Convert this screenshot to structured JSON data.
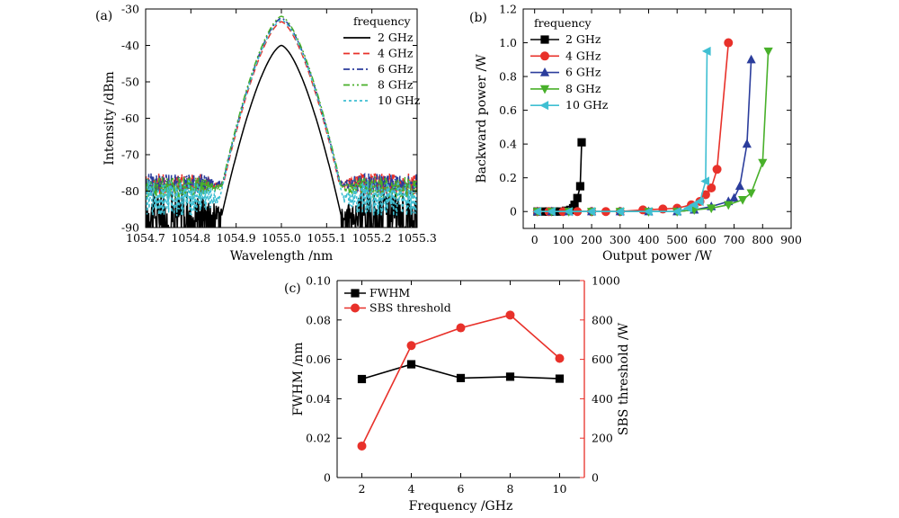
{
  "chart_data": [
    {
      "panel": "(a)",
      "type": "line",
      "xlabel": "Wavelength /nm",
      "ylabel": "Intensity /dBm",
      "xlim": [
        1054.7,
        1055.3
      ],
      "ylim": [
        -90,
        -30
      ],
      "xticks": [
        "1054.7",
        "1054.8",
        "1054.9",
        "1055.0",
        "1055.1",
        "1055.2",
        "1055.3"
      ],
      "yticks": [
        "-90",
        "-80",
        "-70",
        "-60",
        "-50",
        "-40",
        "-30"
      ],
      "legend_title": "frequency",
      "legend_position": "top-right",
      "series": [
        {
          "name": "2 GHz",
          "color": "#000000",
          "dash": "solid",
          "peak": -40,
          "floor": -86,
          "noise": 6
        },
        {
          "name": "4 GHz",
          "color": "#e8312a",
          "dash": "dash",
          "peak": -33.5,
          "floor": -78,
          "noise": 3
        },
        {
          "name": "6 GHz",
          "color": "#2b3d9c",
          "dash": "dashdot",
          "peak": -32.5,
          "floor": -78,
          "noise": 3
        },
        {
          "name": "8 GHz",
          "color": "#48b02a",
          "dash": "dashdotdot",
          "peak": -32,
          "floor": -79,
          "noise": 3
        },
        {
          "name": "10 GHz",
          "color": "#3fbfd2",
          "dash": "shortdash",
          "peak": -33,
          "floor": -82,
          "noise": 5
        }
      ]
    },
    {
      "panel": "(b)",
      "type": "line",
      "xlabel": "Output power /W",
      "ylabel": "Backward power /W",
      "xlim": [
        -40,
        900
      ],
      "ylim": [
        -0.1,
        1.2
      ],
      "xticks": [
        "0",
        "100",
        "200",
        "300",
        "400",
        "500",
        "600",
        "700",
        "800",
        "900"
      ],
      "yticks": [
        "0",
        "0.2",
        "0.4",
        "0.6",
        "0.8",
        "1.0",
        "1.2"
      ],
      "legend_title": "frequency",
      "legend_position": "top-left",
      "series": [
        {
          "name": "2 GHz",
          "color": "#000000",
          "marker": "square",
          "x": [
            10,
            30,
            50,
            70,
            90,
            110,
            125,
            135,
            140,
            150,
            160,
            165
          ],
          "y": [
            0,
            0,
            0,
            0,
            0,
            0.005,
            0.01,
            0.02,
            0.04,
            0.08,
            0.15,
            0.41
          ]
        },
        {
          "name": "4 GHz",
          "color": "#e8312a",
          "marker": "circle",
          "x": [
            10,
            50,
            100,
            150,
            200,
            250,
            300,
            380,
            450,
            500,
            550,
            580,
            600,
            620,
            640,
            680
          ],
          "y": [
            0,
            0,
            0,
            0,
            0,
            0,
            0,
            0.01,
            0.015,
            0.02,
            0.04,
            0.06,
            0.1,
            0.14,
            0.25,
            1.0
          ]
        },
        {
          "name": "6 GHz",
          "color": "#2b3d9c",
          "marker": "triangle-up",
          "x": [
            10,
            60,
            120,
            200,
            300,
            400,
            500,
            560,
            620,
            680,
            700,
            720,
            745,
            760
          ],
          "y": [
            0,
            0,
            0,
            0,
            0,
            0,
            0,
            0.01,
            0.03,
            0.06,
            0.08,
            0.15,
            0.4,
            0.9
          ]
        },
        {
          "name": "8 GHz",
          "color": "#48b02a",
          "marker": "triangle-down",
          "x": [
            10,
            60,
            120,
            200,
            300,
            400,
            500,
            560,
            620,
            680,
            730,
            760,
            800,
            820
          ],
          "y": [
            0,
            0,
            0,
            0,
            0,
            0,
            0,
            0.01,
            0.02,
            0.04,
            0.07,
            0.11,
            0.29,
            0.95
          ]
        },
        {
          "name": "10 GHz",
          "color": "#3fbfd2",
          "marker": "triangle-left",
          "x": [
            10,
            60,
            120,
            200,
            300,
            400,
            500,
            540,
            560,
            580,
            600,
            605
          ],
          "y": [
            0,
            0,
            0,
            0,
            0,
            0,
            0,
            0.02,
            0.04,
            0.06,
            0.18,
            0.95
          ]
        }
      ]
    },
    {
      "panel": "(c)",
      "type": "line",
      "xlabel": "Frequency /GHz",
      "ylabel": "FWHM /nm",
      "y2label": "SBS threshold /W",
      "xlim": [
        1,
        11
      ],
      "ylim": [
        0,
        0.1
      ],
      "y2lim": [
        0,
        1000
      ],
      "xticks": [
        "2",
        "4",
        "6",
        "8",
        "10"
      ],
      "yticks": [
        "0",
        "0.02",
        "0.04",
        "0.06",
        "0.08",
        "0.10"
      ],
      "y2ticks": [
        "0",
        "200",
        "400",
        "600",
        "800",
        "1000"
      ],
      "legend_position": "top-left",
      "x": [
        2,
        4,
        6,
        8,
        10
      ],
      "series": [
        {
          "name": "FWHM",
          "axis": "left",
          "color": "#000000",
          "marker": "square",
          "values": [
            0.05,
            0.0575,
            0.0505,
            0.0512,
            0.0502
          ]
        },
        {
          "name": "SBS threshold",
          "axis": "right",
          "color": "#e8312a",
          "marker": "circle",
          "values": [
            160,
            670,
            760,
            825,
            605
          ]
        }
      ]
    }
  ]
}
